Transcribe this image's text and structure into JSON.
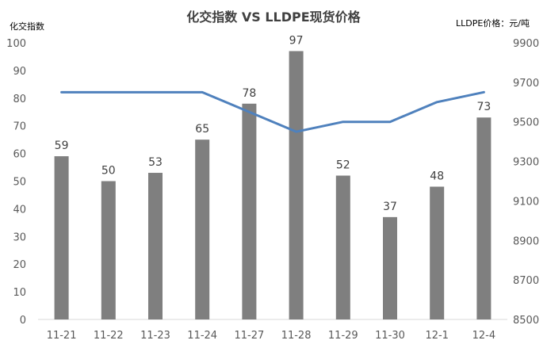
{
  "chart_data": {
    "type": "bar+line",
    "title": "化交指数 VS LLDPE现货价格",
    "left_axis_title": "化交指数",
    "right_axis_title": "LLDPE价格：元/吨",
    "categories": [
      "11-21",
      "11-22",
      "11-23",
      "11-24",
      "11-27",
      "11-28",
      "11-29",
      "11-30",
      "12-1",
      "12-4"
    ],
    "series": [
      {
        "kind": "bar",
        "axis": "left",
        "values": [
          59,
          50,
          53,
          65,
          78,
          97,
          52,
          37,
          48,
          73
        ],
        "data_labels": [
          "59",
          "50",
          "53",
          "65",
          "78",
          "97",
          "52",
          "37",
          "48",
          "73"
        ],
        "color": "#7f7f7f"
      },
      {
        "kind": "line",
        "axis": "right",
        "values": [
          9650,
          9650,
          9650,
          9650,
          9550,
          9450,
          9500,
          9500,
          9600,
          9650
        ],
        "color": "#4f81bd"
      }
    ],
    "left_ylim": [
      0,
      100
    ],
    "left_ticks": [
      0,
      10,
      20,
      30,
      40,
      50,
      60,
      70,
      80,
      90,
      100
    ],
    "right_ylim": [
      8500,
      9900
    ],
    "right_ticks": [
      8500,
      8700,
      8900,
      9100,
      9300,
      9500,
      9700,
      9900
    ],
    "grid": false,
    "legend": "none"
  }
}
